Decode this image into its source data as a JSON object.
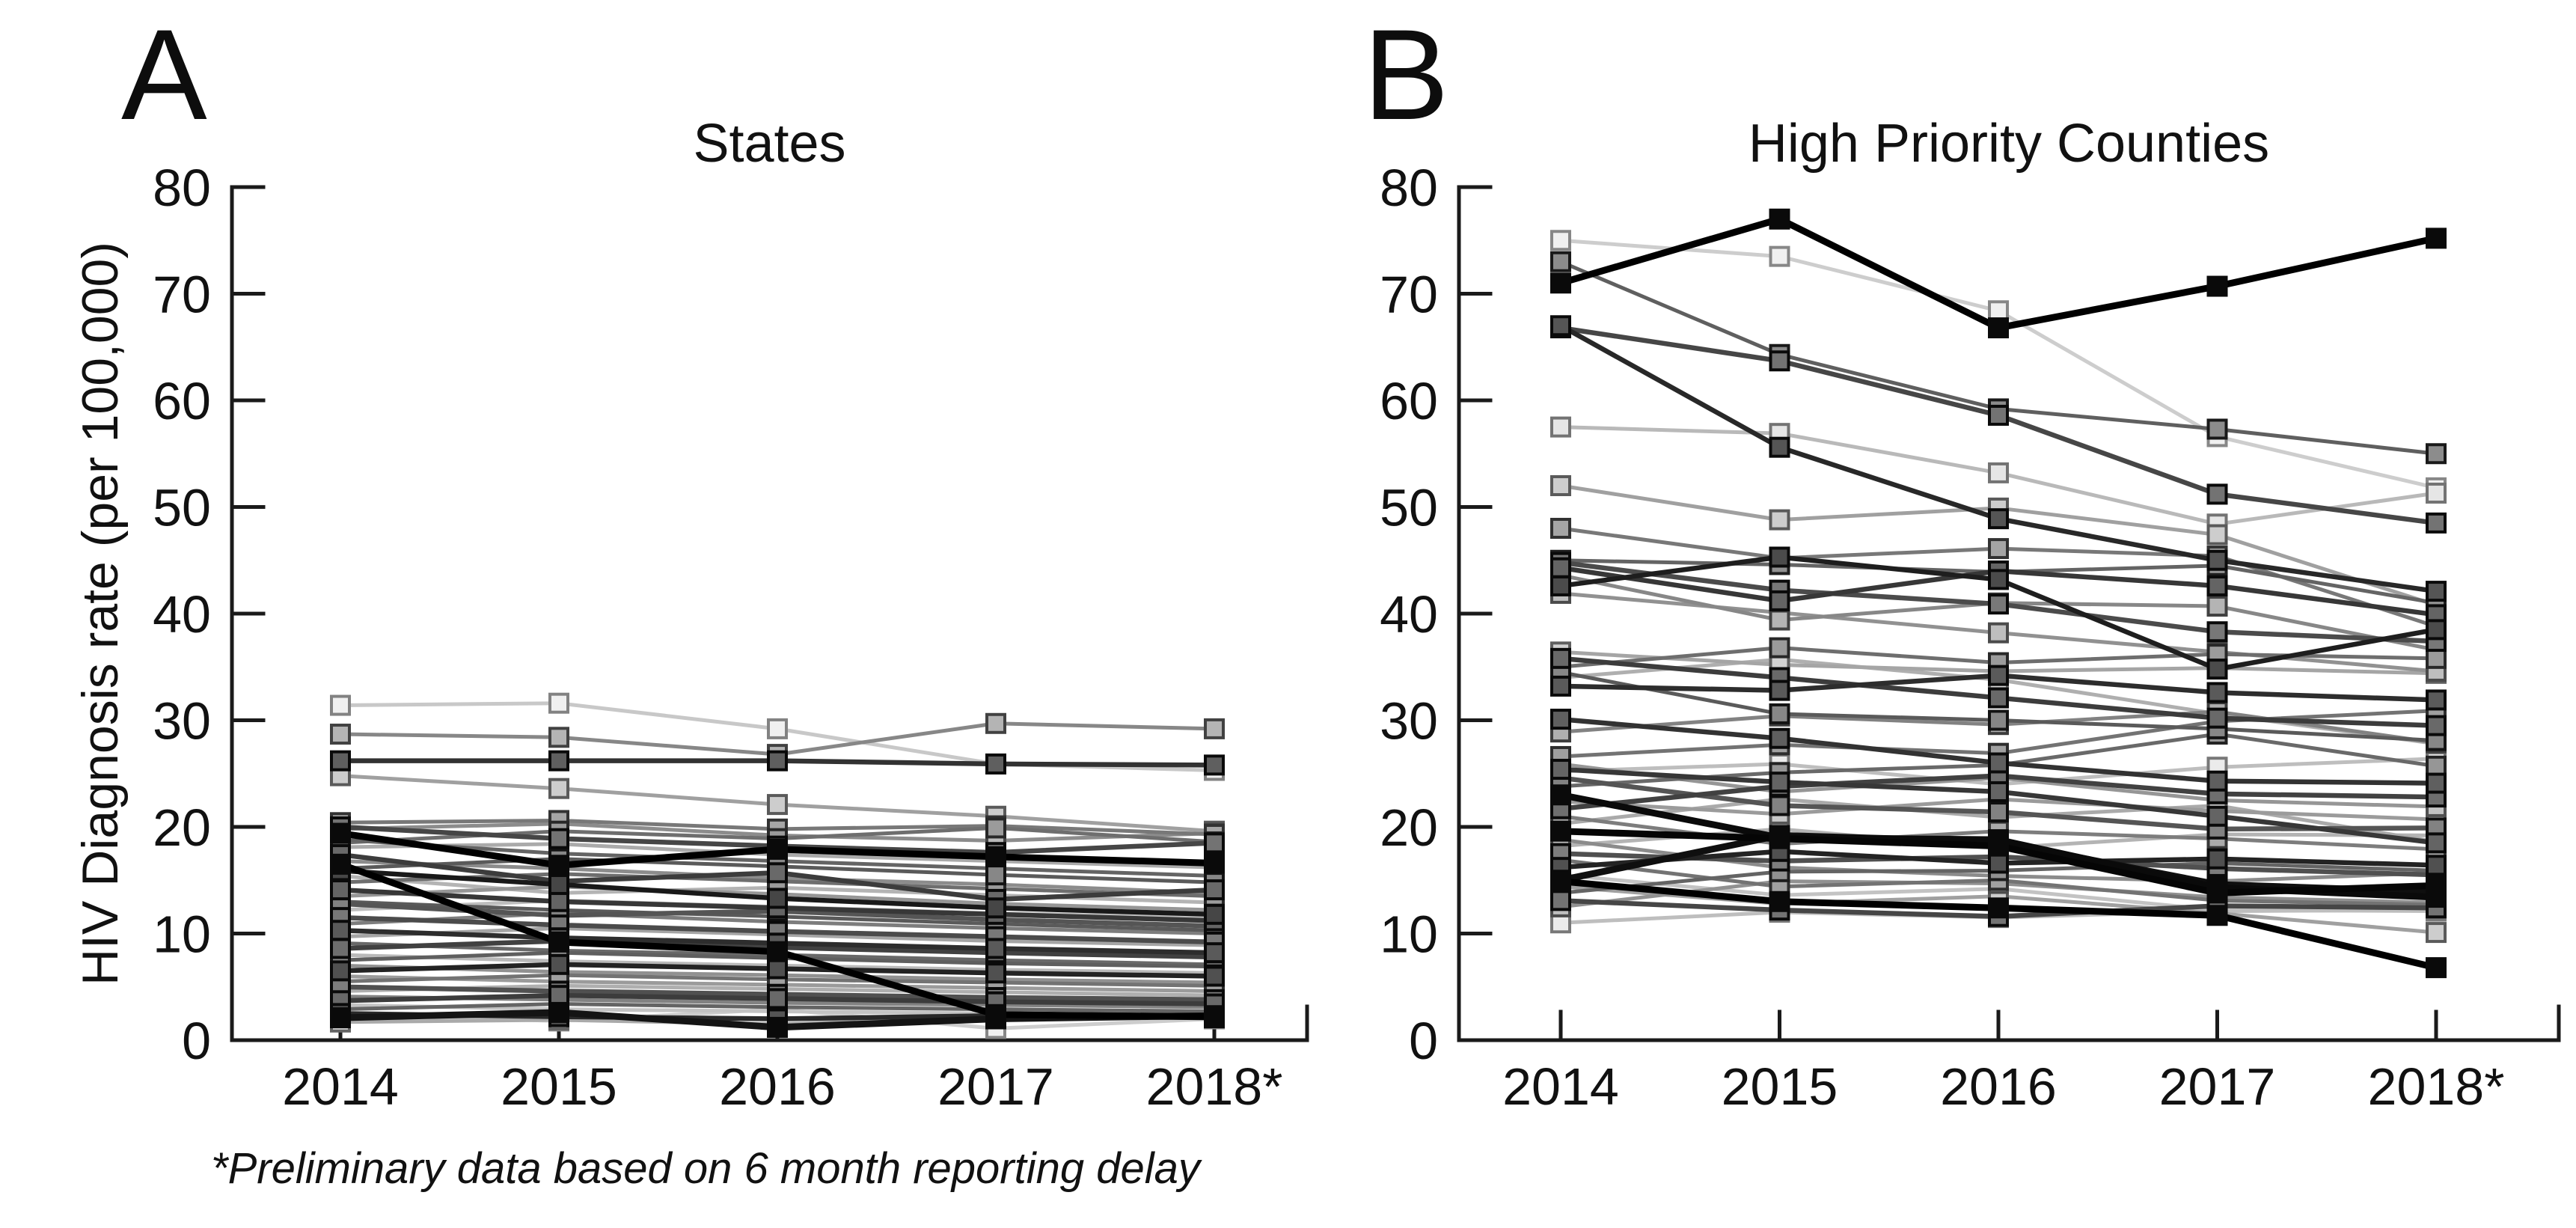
{
  "figure": {
    "ylabel": "HIV Diagnosis rate (per 100,000)",
    "footnote": "*Preliminary data based on 6 month reporting delay"
  },
  "chart_data": [
    {
      "type": "line",
      "panel_label": "A",
      "title": "States",
      "x": [
        2014,
        2015,
        2016,
        2017,
        2018
      ],
      "x_tick_labels": [
        "2014",
        "2015",
        "2016",
        "2017",
        "2018*"
      ],
      "yticks": [
        0,
        10,
        20,
        30,
        40,
        50,
        60,
        70,
        80
      ],
      "ylim": [
        0,
        80
      ],
      "grid": false,
      "legend": "none",
      "series": [
        {
          "gray": 200,
          "values": [
            31.4,
            31.6,
            29.2,
            25.9,
            25.3
          ]
        },
        {
          "gray": 135,
          "values": [
            28.7,
            28.4,
            26.8,
            29.7,
            29.2
          ]
        },
        {
          "gray": 50,
          "values": [
            26.2,
            26.2,
            26.2,
            25.9,
            25.8
          ]
        },
        {
          "gray": 160,
          "values": [
            24.8,
            23.6,
            22.1,
            21.0,
            19.6
          ]
        },
        {
          "gray": 120,
          "values": [
            20.4,
            20.6,
            19.8,
            20.1,
            19.3
          ]
        },
        {
          "gray": 70,
          "values": [
            20.0,
            18.9,
            18.2,
            17.6,
            18.5
          ]
        },
        {
          "gray": 0,
          "values": [
            19.4,
            16.4,
            17.9,
            17.2,
            16.6
          ]
        },
        {
          "gray": 100,
          "values": [
            18.8,
            17.5,
            16.8,
            16.1,
            15.4
          ]
        },
        {
          "gray": 170,
          "values": [
            18.1,
            18.4,
            17.4,
            16.8,
            16.2
          ]
        },
        {
          "gray": 60,
          "values": [
            17.4,
            14.9,
            15.7,
            13.2,
            14.1
          ]
        },
        {
          "gray": 140,
          "values": [
            16.8,
            16.1,
            15.2,
            14.6,
            13.8
          ]
        },
        {
          "gray": 90,
          "values": [
            16.1,
            17.0,
            16.3,
            15.5,
            14.8
          ]
        },
        {
          "gray": 180,
          "values": [
            15.4,
            13.8,
            14.3,
            13.6,
            12.9
          ]
        },
        {
          "gray": 110,
          "values": [
            14.8,
            15.6,
            14.9,
            14.2,
            13.5
          ]
        },
        {
          "gray": 55,
          "values": [
            14.1,
            13.0,
            12.4,
            11.8,
            11.2
          ]
        },
        {
          "gray": 150,
          "values": [
            13.5,
            14.4,
            13.7,
            12.8,
            12.2
          ]
        },
        {
          "gray": 85,
          "values": [
            12.8,
            11.7,
            12.1,
            11.3,
            10.7
          ]
        },
        {
          "gray": 190,
          "values": [
            12.2,
            13.1,
            12.5,
            11.9,
            11.5
          ]
        },
        {
          "gray": 75,
          "values": [
            11.5,
            10.8,
            10.2,
            9.7,
            9.2
          ]
        },
        {
          "gray": 125,
          "values": [
            10.9,
            11.9,
            11.1,
            10.5,
            10.0
          ]
        },
        {
          "gray": 45,
          "values": [
            10.3,
            9.6,
            9.1,
            8.6,
            8.2
          ]
        },
        {
          "gray": 165,
          "values": [
            9.7,
            10.5,
            9.9,
            9.3,
            8.9
          ]
        },
        {
          "gray": 105,
          "values": [
            9.1,
            8.4,
            8.0,
            7.5,
            7.1
          ]
        },
        {
          "gray": 65,
          "values": [
            8.6,
            9.3,
            8.7,
            8.2,
            7.8
          ]
        },
        {
          "gray": 185,
          "values": [
            8.0,
            7.4,
            7.0,
            6.6,
            6.3
          ]
        },
        {
          "gray": 95,
          "values": [
            7.5,
            8.2,
            7.7,
            7.2,
            6.9
          ]
        },
        {
          "gray": 145,
          "values": [
            7.0,
            6.4,
            6.1,
            5.7,
            5.4
          ]
        },
        {
          "gray": 35,
          "values": [
            6.5,
            7.1,
            6.7,
            6.3,
            6.0
          ]
        },
        {
          "gray": 155,
          "values": [
            6.0,
            5.5,
            5.2,
            4.9,
            4.6
          ]
        },
        {
          "gray": 115,
          "values": [
            5.5,
            6.1,
            5.7,
            5.4,
            5.1
          ]
        },
        {
          "gray": 80,
          "values": [
            5.0,
            4.6,
            4.3,
            4.0,
            3.8
          ]
        },
        {
          "gray": 175,
          "values": [
            4.6,
            5.1,
            4.8,
            4.5,
            4.2
          ]
        },
        {
          "gray": 130,
          "values": [
            4.1,
            3.8,
            3.5,
            3.3,
            3.1
          ]
        },
        {
          "gray": 60,
          "values": [
            3.7,
            4.2,
            3.9,
            3.6,
            3.4
          ]
        },
        {
          "gray": 195,
          "values": [
            3.3,
            2.9,
            2.7,
            2.5,
            2.4
          ]
        },
        {
          "gray": 100,
          "values": [
            2.9,
            3.4,
            3.1,
            2.9,
            2.7
          ]
        },
        {
          "gray": 40,
          "values": [
            2.5,
            2.2,
            2.0,
            2.3,
            2.1
          ]
        },
        {
          "gray": 20,
          "values": [
            2.1,
            2.6,
            1.2,
            2.0,
            2.3
          ]
        },
        {
          "gray": 170,
          "values": [
            1.7,
            1.9,
            1.5,
            2.2,
            2.4
          ]
        },
        {
          "gray": 140,
          "values": [
            19.8,
            20.3,
            19.2,
            18.7,
            19.4
          ]
        },
        {
          "gray": 110,
          "values": [
            18.5,
            19.6,
            18.9,
            19.9,
            18.6
          ]
        },
        {
          "gray": 0,
          "values": [
            16.5,
            9.2,
            8.3,
            2.4,
            2.2
          ]
        },
        {
          "gray": 205,
          "values": [
            2.4,
            1.8,
            2.9,
            1.1,
            2.0
          ]
        },
        {
          "gray": 25,
          "values": [
            15.9,
            14.6,
            13.3,
            12.4,
            11.8
          ]
        },
        {
          "gray": 90,
          "values": [
            13.0,
            12.2,
            11.6,
            10.9,
            10.3
          ]
        }
      ]
    },
    {
      "type": "line",
      "panel_label": "B",
      "title": "High Priority Counties",
      "x": [
        2014,
        2015,
        2016,
        2017,
        2018
      ],
      "x_tick_labels": [
        "2014",
        "2015",
        "2016",
        "2017",
        "2018*"
      ],
      "yticks": [
        0,
        10,
        20,
        30,
        40,
        50,
        60,
        70,
        80
      ],
      "ylim": [
        0,
        80
      ],
      "grid": false,
      "legend": "none",
      "series": [
        {
          "gray": 0,
          "values": [
            71.0,
            77.0,
            66.8,
            70.7,
            75.2
          ]
        },
        {
          "gray": 205,
          "values": [
            75.0,
            73.5,
            68.4,
            56.6,
            51.8
          ]
        },
        {
          "gray": 95,
          "values": [
            73.0,
            64.3,
            59.2,
            57.3,
            55.0
          ]
        },
        {
          "gray": 70,
          "values": [
            66.8,
            63.7,
            58.6,
            51.2,
            48.5
          ]
        },
        {
          "gray": 40,
          "values": [
            67.0,
            55.6,
            48.9,
            45.0,
            42.1
          ]
        },
        {
          "gray": 185,
          "values": [
            57.5,
            56.9,
            53.2,
            48.4,
            51.3
          ]
        },
        {
          "gray": 160,
          "values": [
            52.0,
            48.8,
            49.9,
            47.4,
            40.8
          ]
        },
        {
          "gray": 120,
          "values": [
            48.0,
            45.2,
            46.1,
            45.4,
            38.8
          ]
        },
        {
          "gray": 100,
          "values": [
            45.0,
            44.6,
            43.9,
            44.5,
            41.0
          ]
        },
        {
          "gray": 55,
          "values": [
            44.3,
            41.2,
            44.0,
            42.6,
            39.9
          ]
        },
        {
          "gray": 135,
          "values": [
            43.6,
            39.4,
            41.0,
            40.7,
            36.6
          ]
        },
        {
          "gray": 30,
          "values": [
            42.6,
            45.3,
            43.2,
            34.8,
            38.5
          ]
        },
        {
          "gray": 75,
          "values": [
            44.8,
            42.2,
            40.9,
            38.3,
            37.4
          ]
        },
        {
          "gray": 145,
          "values": [
            41.9,
            40.1,
            38.2,
            36.4,
            34.6
          ]
        },
        {
          "gray": 165,
          "values": [
            36.4,
            35.2,
            34.6,
            34.9,
            34.4
          ]
        },
        {
          "gray": 60,
          "values": [
            35.8,
            34.0,
            32.1,
            30.2,
            29.5
          ]
        },
        {
          "gray": 110,
          "values": [
            35.0,
            36.8,
            35.4,
            36.2,
            35.8
          ]
        },
        {
          "gray": 90,
          "values": [
            34.5,
            30.6,
            30.0,
            29.2,
            28.1
          ]
        },
        {
          "gray": 45,
          "values": [
            33.2,
            32.8,
            34.2,
            32.6,
            31.9
          ]
        },
        {
          "gray": 175,
          "values": [
            34.0,
            35.7,
            33.8,
            30.6,
            27.8
          ]
        },
        {
          "gray": 50,
          "values": [
            30.1,
            28.3,
            26.0,
            24.3,
            24.1
          ]
        },
        {
          "gray": 130,
          "values": [
            28.9,
            30.4,
            29.6,
            30.8,
            27.9
          ]
        },
        {
          "gray": 115,
          "values": [
            26.6,
            27.7,
            26.9,
            29.9,
            30.9
          ]
        },
        {
          "gray": 150,
          "values": [
            25.9,
            23.3,
            24.6,
            22.5,
            21.9
          ]
        },
        {
          "gray": 190,
          "values": [
            25.2,
            25.9,
            24.0,
            25.6,
            26.4
          ]
        },
        {
          "gray": 85,
          "values": [
            24.6,
            22.0,
            21.4,
            19.8,
            19.9
          ]
        },
        {
          "gray": 105,
          "values": [
            23.8,
            25.1,
            25.8,
            28.7,
            25.7
          ]
        },
        {
          "gray": 10,
          "values": [
            23.0,
            19.0,
            18.8,
            14.3,
            13.4
          ]
        },
        {
          "gray": 155,
          "values": [
            22.4,
            21.2,
            22.6,
            21.5,
            20.7
          ]
        },
        {
          "gray": 65,
          "values": [
            21.7,
            23.8,
            24.8,
            23.1,
            22.8
          ]
        },
        {
          "gray": 125,
          "values": [
            21.0,
            18.4,
            19.6,
            18.9,
            17.9
          ]
        },
        {
          "gray": 170,
          "values": [
            20.3,
            22.6,
            20.9,
            22.0,
            18.6
          ]
        },
        {
          "gray": 5,
          "values": [
            19.6,
            18.9,
            18.2,
            13.8,
            14.5
          ]
        },
        {
          "gray": 140,
          "values": [
            18.8,
            16.2,
            15.4,
            14.9,
            15.7
          ]
        },
        {
          "gray": 180,
          "values": [
            18.2,
            19.8,
            18.0,
            19.3,
            19.2
          ]
        },
        {
          "gray": 80,
          "values": [
            17.5,
            16.8,
            17.2,
            16.1,
            15.5
          ]
        },
        {
          "gray": 115,
          "values": [
            16.9,
            14.4,
            15.0,
            13.1,
            12.7
          ]
        },
        {
          "gray": 35,
          "values": [
            16.2,
            17.7,
            16.6,
            17.0,
            16.4
          ]
        },
        {
          "gray": 195,
          "values": [
            15.5,
            13.6,
            14.2,
            12.2,
            12.1
          ]
        },
        {
          "gray": 15,
          "values": [
            15.0,
            19.2,
            18.6,
            14.6,
            13.9
          ]
        },
        {
          "gray": 160,
          "values": [
            14.4,
            12.8,
            13.5,
            11.9,
            10.1
          ]
        },
        {
          "gray": 100,
          "values": [
            13.8,
            15.8,
            15.9,
            16.6,
            15.9
          ]
        },
        {
          "gray": 70,
          "values": [
            13.1,
            12.2,
            11.6,
            12.6,
            12.4
          ]
        },
        {
          "gray": 145,
          "values": [
            12.5,
            14.9,
            14.7,
            13.4,
            12.9
          ]
        },
        {
          "gray": 0,
          "values": [
            14.9,
            13.0,
            12.4,
            11.7,
            6.8
          ]
        },
        {
          "gray": 190,
          "values": [
            11.0,
            12.0,
            11.5,
            12.1,
            12.2
          ]
        },
        {
          "gray": 55,
          "values": [
            25.4,
            24.2,
            23.3,
            21.0,
            18.5
          ]
        }
      ]
    }
  ]
}
